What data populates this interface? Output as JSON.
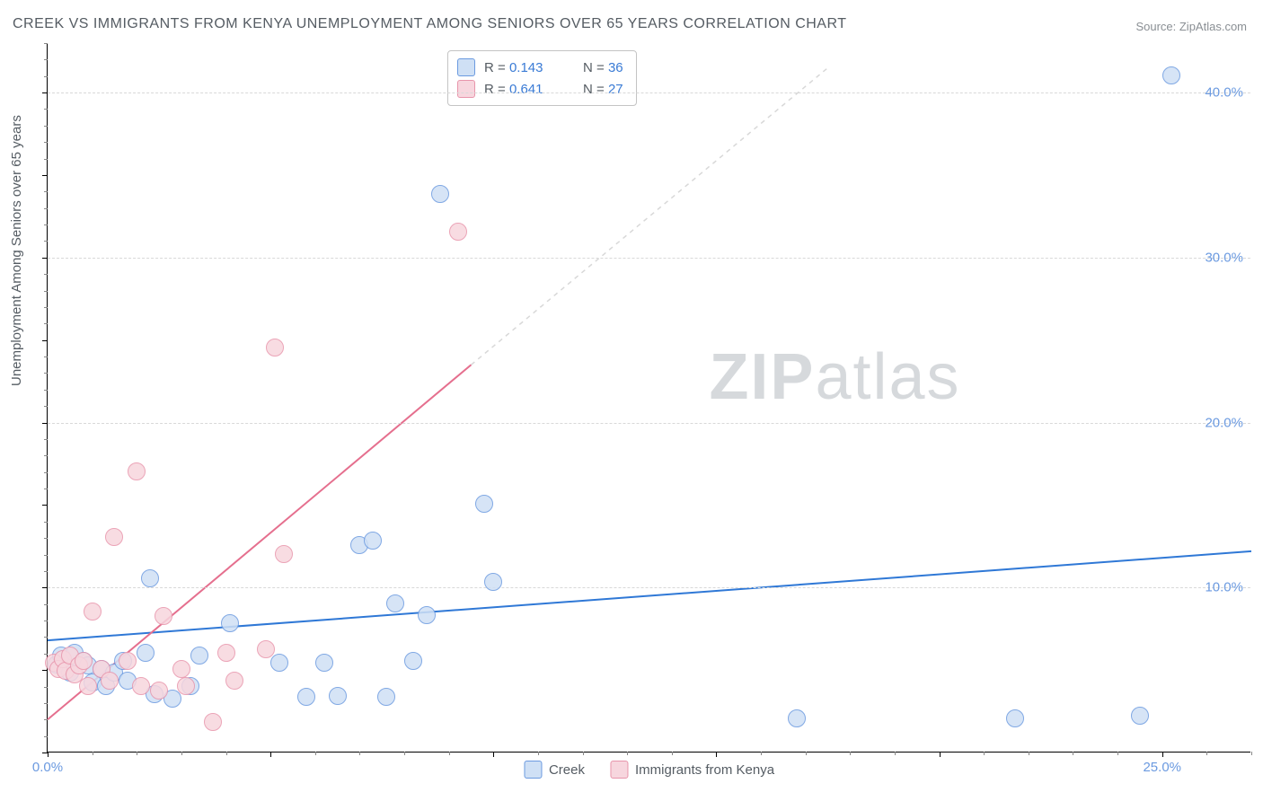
{
  "title": "CREEK VS IMMIGRANTS FROM KENYA UNEMPLOYMENT AMONG SENIORS OVER 65 YEARS CORRELATION CHART",
  "source": "Source: ZipAtlas.com",
  "ylabel": "Unemployment Among Seniors over 65 years",
  "watermark": {
    "part1": "ZIP",
    "part2": "atlas"
  },
  "chart": {
    "type": "scatter",
    "xlim": [
      0,
      27
    ],
    "ylim": [
      0,
      43
    ],
    "x_tick_labels": [
      {
        "v": 0,
        "label": "0.0%"
      },
      {
        "v": 25,
        "label": "25.0%"
      }
    ],
    "y_tick_labels": [
      {
        "v": 10,
        "label": "10.0%"
      },
      {
        "v": 20,
        "label": "20.0%"
      },
      {
        "v": 30,
        "label": "30.0%"
      },
      {
        "v": 40,
        "label": "40.0%"
      }
    ],
    "x_minor_step": 1,
    "y_minor_step": 1,
    "grid_color": "#d8d8d8",
    "background_color": "#ffffff",
    "marker_radius": 10,
    "marker_border": 1.5,
    "series": [
      {
        "id": "creek",
        "label": "Creek",
        "fill": "#cfe0f5",
        "stroke": "#6b9ae0",
        "R": "0.143",
        "N": "36",
        "trend": {
          "x1": 0.0,
          "y1": 6.8,
          "x2": 27.0,
          "y2": 12.2,
          "dash": false,
          "color": "#2f78d6",
          "width": 2
        },
        "points": [
          [
            0.2,
            5.3
          ],
          [
            0.3,
            5.8
          ],
          [
            0.5,
            4.8
          ],
          [
            0.6,
            6.0
          ],
          [
            0.8,
            5.5
          ],
          [
            0.9,
            5.2
          ],
          [
            1.0,
            4.2
          ],
          [
            1.2,
            5.0
          ],
          [
            1.3,
            4.0
          ],
          [
            1.5,
            4.8
          ],
          [
            1.7,
            5.5
          ],
          [
            1.8,
            4.3
          ],
          [
            2.2,
            6.0
          ],
          [
            2.3,
            10.5
          ],
          [
            2.4,
            3.5
          ],
          [
            2.8,
            3.2
          ],
          [
            3.2,
            4.0
          ],
          [
            3.4,
            5.8
          ],
          [
            4.1,
            7.8
          ],
          [
            5.2,
            5.4
          ],
          [
            5.8,
            3.3
          ],
          [
            6.2,
            5.4
          ],
          [
            6.5,
            3.4
          ],
          [
            7.0,
            12.5
          ],
          [
            7.3,
            12.8
          ],
          [
            7.6,
            3.3
          ],
          [
            7.8,
            9.0
          ],
          [
            8.2,
            5.5
          ],
          [
            8.5,
            8.3
          ],
          [
            8.8,
            33.8
          ],
          [
            9.8,
            15.0
          ],
          [
            10.0,
            10.3
          ],
          [
            16.8,
            2.0
          ],
          [
            21.7,
            2.0
          ],
          [
            24.5,
            2.2
          ],
          [
            25.2,
            41.0
          ]
        ]
      },
      {
        "id": "kenya",
        "label": "Immigrants from Kenya",
        "fill": "#f7d6de",
        "stroke": "#e895ab",
        "R": "0.641",
        "N": "27",
        "trend": {
          "x1": 0.0,
          "y1": 2.0,
          "x2": 9.5,
          "y2": 23.5,
          "dash": false,
          "color": "#e56f8e",
          "width": 2
        },
        "trend_ext": {
          "x1": 9.5,
          "y1": 23.5,
          "x2": 17.5,
          "y2": 41.5,
          "dash": true,
          "color": "#d8d8d8",
          "width": 1.5
        },
        "points": [
          [
            0.15,
            5.4
          ],
          [
            0.25,
            5.0
          ],
          [
            0.35,
            5.6
          ],
          [
            0.4,
            4.9
          ],
          [
            0.5,
            5.8
          ],
          [
            0.6,
            4.7
          ],
          [
            0.7,
            5.2
          ],
          [
            0.8,
            5.5
          ],
          [
            0.9,
            4.0
          ],
          [
            1.0,
            8.5
          ],
          [
            1.2,
            5.0
          ],
          [
            1.4,
            4.3
          ],
          [
            1.5,
            13.0
          ],
          [
            1.8,
            5.5
          ],
          [
            2.0,
            17.0
          ],
          [
            2.1,
            4.0
          ],
          [
            2.5,
            3.7
          ],
          [
            2.6,
            8.2
          ],
          [
            3.0,
            5.0
          ],
          [
            3.1,
            4.0
          ],
          [
            3.7,
            1.8
          ],
          [
            4.0,
            6.0
          ],
          [
            4.2,
            4.3
          ],
          [
            4.9,
            6.2
          ],
          [
            5.1,
            24.5
          ],
          [
            5.3,
            12.0
          ],
          [
            9.2,
            31.5
          ]
        ]
      }
    ]
  },
  "colors": {
    "title": "#555c63",
    "axis_label": "#555c63",
    "tick_label": "#6b9ae0",
    "watermark": "#d6d9dc"
  }
}
